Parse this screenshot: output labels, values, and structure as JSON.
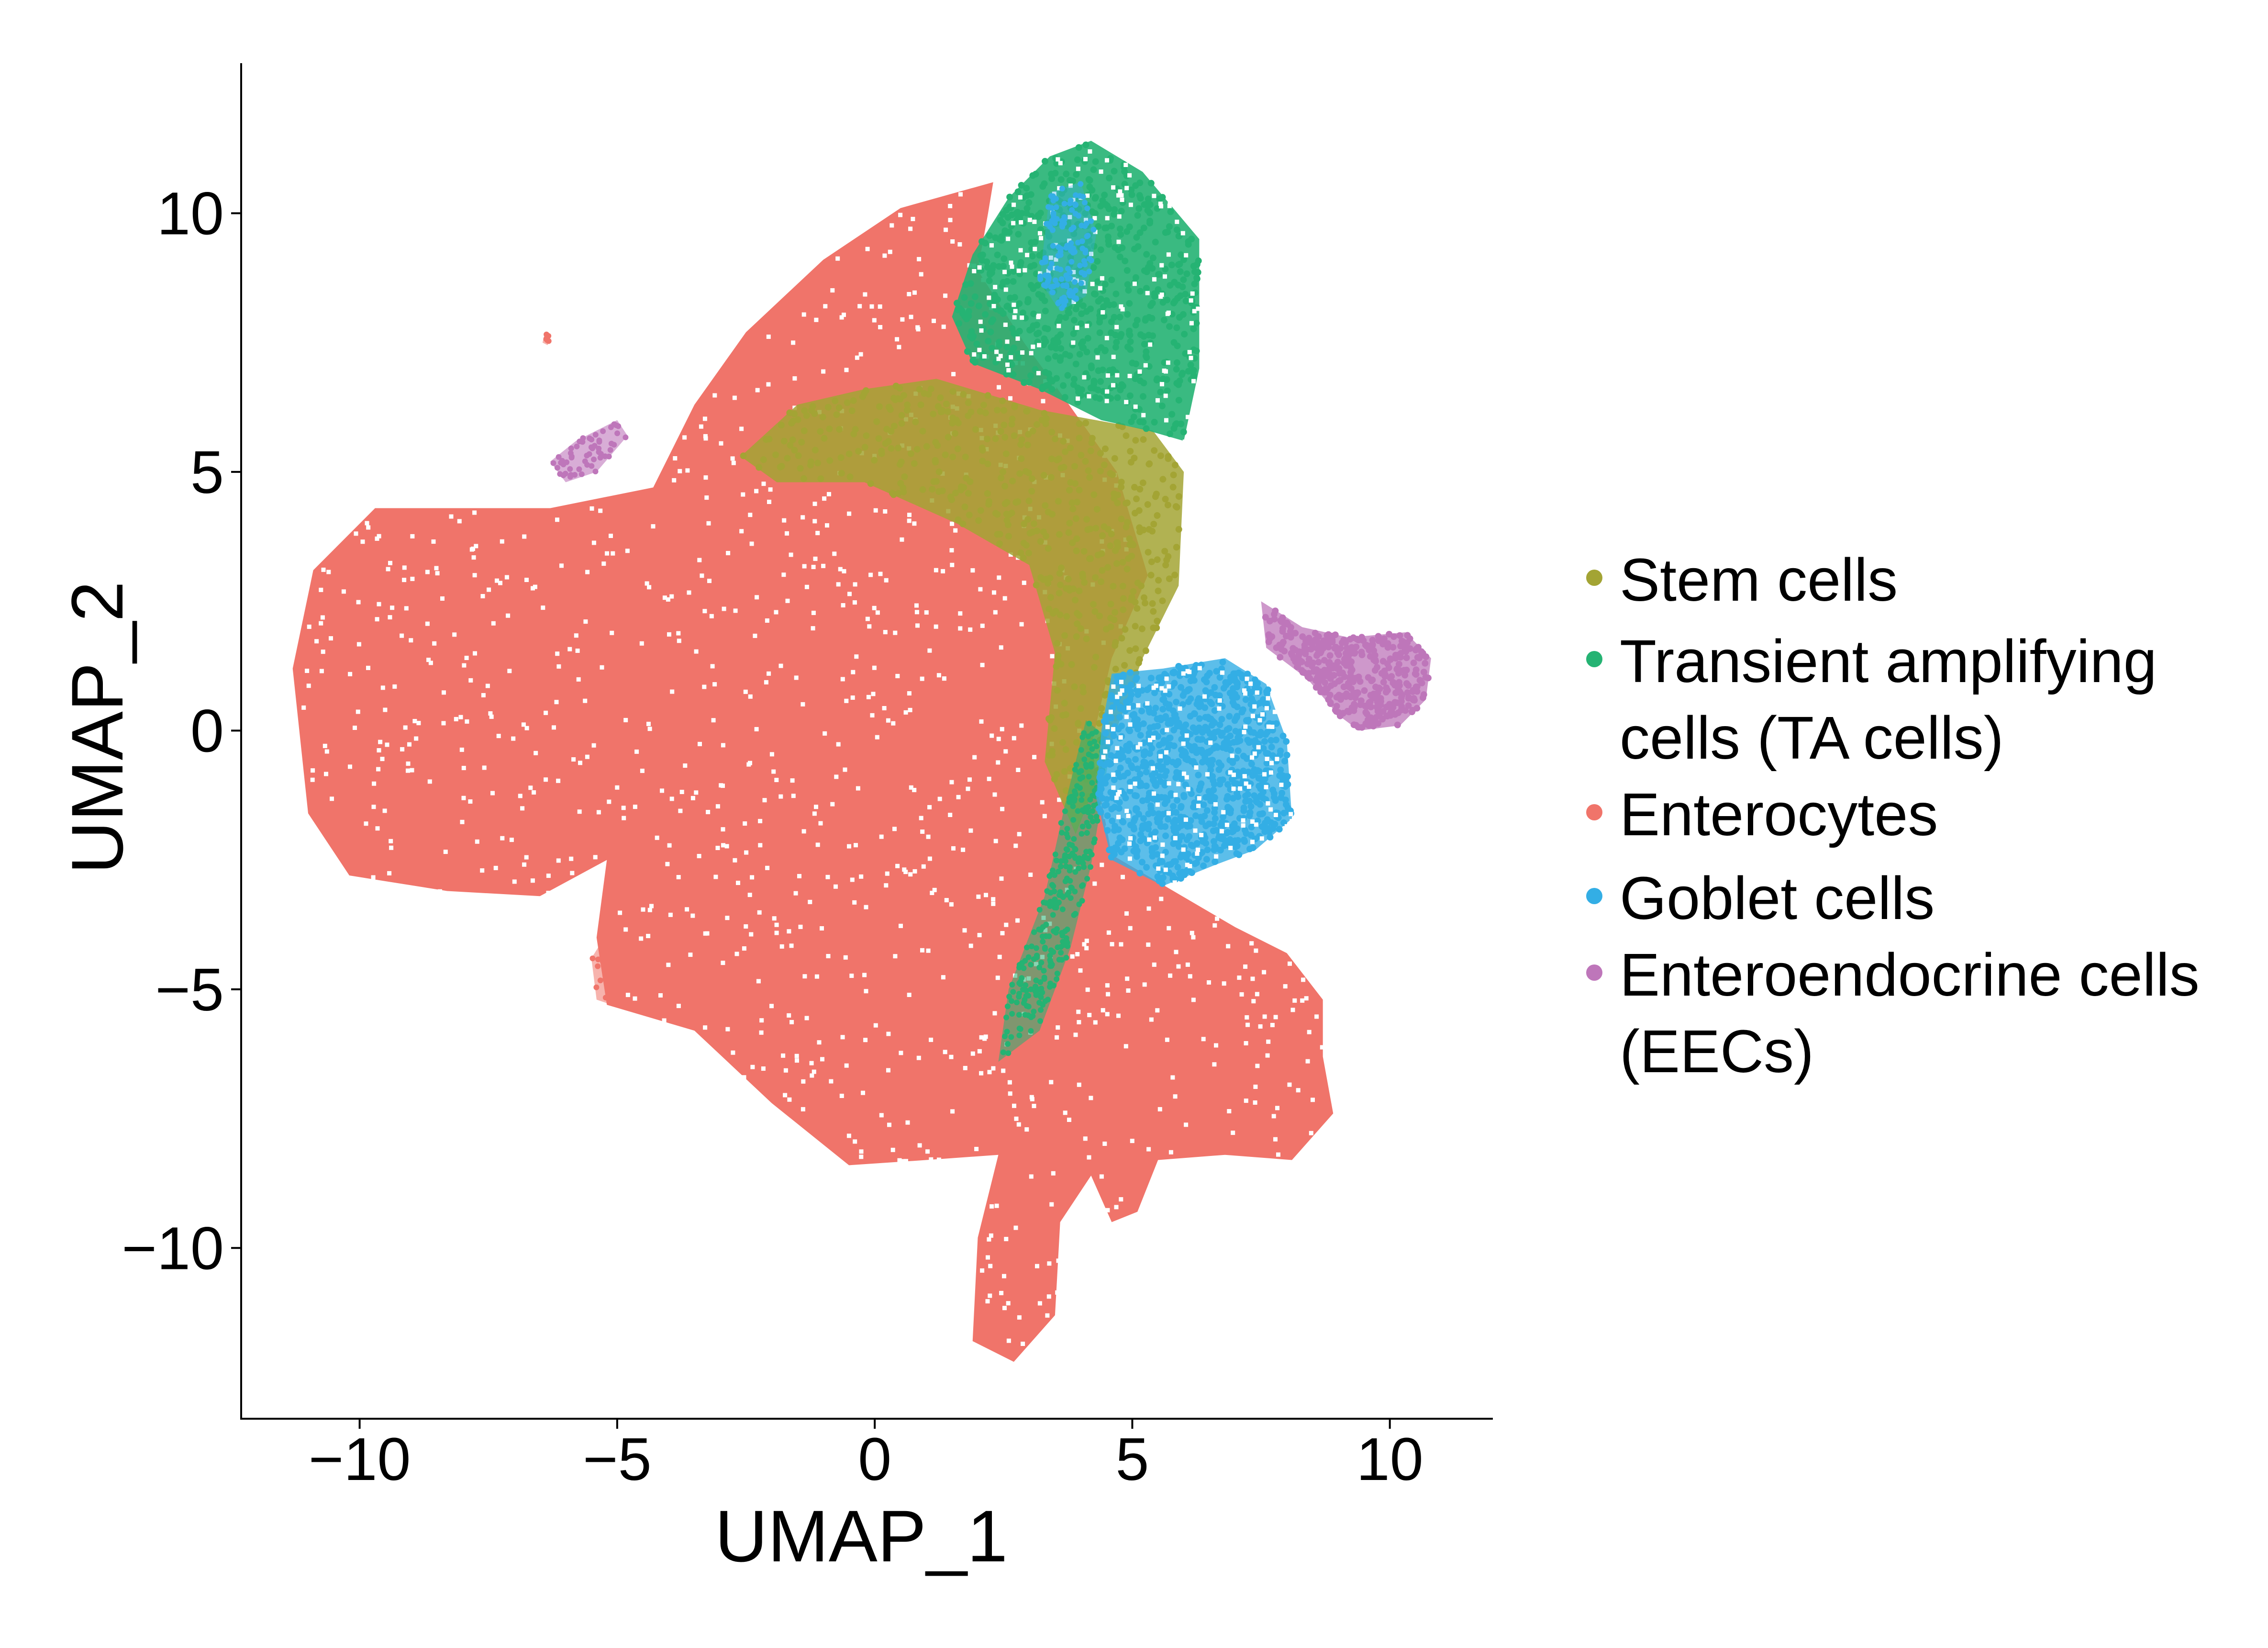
{
  "chart_data": {
    "type": "scatter",
    "title": "",
    "xlabel": "UMAP_1",
    "ylabel": "UMAP_2",
    "xlim": [
      -12.3,
      12.0
    ],
    "ylim": [
      -13.3,
      12.9
    ],
    "x_ticks": [
      {
        "value": -10,
        "label": "−10"
      },
      {
        "value": -5,
        "label": "−5"
      },
      {
        "value": 0,
        "label": "0"
      },
      {
        "value": 5,
        "label": "5"
      },
      {
        "value": 10,
        "label": "10"
      }
    ],
    "y_ticks": [
      {
        "value": -10,
        "label": "−10"
      },
      {
        "value": -5,
        "label": "−5"
      },
      {
        "value": 0,
        "label": "0"
      },
      {
        "value": 5,
        "label": "5"
      },
      {
        "value": 10,
        "label": "10"
      }
    ],
    "grid": false,
    "legend_position": "right",
    "series": [
      {
        "name": "Stem cells",
        "color": "#A3A434",
        "region": {
          "polygon": [
            [
              1.2,
              6.8
            ],
            [
              3.2,
              6.2
            ],
            [
              5.4,
              5.8
            ],
            [
              6.0,
              5.0
            ],
            [
              5.9,
              2.8
            ],
            [
              5.2,
              1.4
            ],
            [
              4.5,
              -0.5
            ],
            [
              3.9,
              -2.0
            ],
            [
              3.3,
              -0.6
            ],
            [
              3.5,
              1.5
            ],
            [
              3.0,
              3.2
            ],
            [
              1.6,
              4.0
            ],
            [
              -0.2,
              4.8
            ],
            [
              -1.9,
              4.8
            ],
            [
              -2.6,
              5.3
            ],
            [
              -1.5,
              6.3
            ],
            [
              -0.2,
              6.6
            ]
          ],
          "points": 520
        }
      },
      {
        "name": "Transient amplifying cells (TA cells)",
        "color": "#25B373",
        "region": {
          "polygon": [
            [
              2.6,
              10.3
            ],
            [
              3.4,
              11.1
            ],
            [
              4.2,
              11.4
            ],
            [
              5.2,
              10.8
            ],
            [
              6.3,
              9.5
            ],
            [
              6.3,
              7.0
            ],
            [
              6.0,
              5.6
            ],
            [
              5.3,
              5.8
            ],
            [
              4.4,
              6.0
            ],
            [
              3.2,
              6.6
            ],
            [
              1.9,
              7.1
            ],
            [
              1.5,
              8.0
            ],
            [
              1.9,
              9.2
            ]
          ],
          "points": 620
        },
        "band": {
          "polygon": [
            [
              4.1,
              0.2
            ],
            [
              4.6,
              -0.2
            ],
            [
              4.2,
              -2.6
            ],
            [
              3.8,
              -4.2
            ],
            [
              3.2,
              -5.8
            ],
            [
              2.4,
              -6.4
            ],
            [
              2.6,
              -5.0
            ],
            [
              3.3,
              -3.2
            ],
            [
              3.7,
              -1.4
            ]
          ],
          "points": 280
        }
      },
      {
        "name": "Enterocytes",
        "color": "#F0746A",
        "hull": [
          [
            2.3,
            10.6
          ],
          [
            0.5,
            10.1
          ],
          [
            -1.0,
            9.1
          ],
          [
            -2.5,
            7.7
          ],
          [
            -3.5,
            6.3
          ],
          [
            -4.3,
            4.7
          ],
          [
            -6.3,
            4.3
          ],
          [
            -9.7,
            4.3
          ],
          [
            -10.9,
            3.1
          ],
          [
            -11.3,
            1.2
          ],
          [
            -11.0,
            -1.6
          ],
          [
            -10.2,
            -2.8
          ],
          [
            -8.3,
            -3.1
          ],
          [
            -6.5,
            -3.2
          ],
          [
            -5.2,
            -2.5
          ],
          [
            -5.4,
            -4.0
          ],
          [
            -5.2,
            -5.3
          ],
          [
            -3.5,
            -5.8
          ],
          [
            -2.0,
            -7.2
          ],
          [
            -0.5,
            -8.4
          ],
          [
            1.0,
            -8.3
          ],
          [
            2.4,
            -8.2
          ],
          [
            2.0,
            -9.8
          ],
          [
            1.9,
            -11.8
          ],
          [
            2.7,
            -12.2
          ],
          [
            3.5,
            -11.3
          ],
          [
            3.6,
            -9.5
          ],
          [
            4.2,
            -8.6
          ],
          [
            4.6,
            -9.5
          ],
          [
            5.1,
            -9.3
          ],
          [
            5.5,
            -8.3
          ],
          [
            6.8,
            -8.2
          ],
          [
            8.1,
            -8.3
          ],
          [
            8.9,
            -7.4
          ],
          [
            8.7,
            -6.3
          ],
          [
            8.7,
            -5.2
          ],
          [
            8.0,
            -4.3
          ],
          [
            7.0,
            -3.8
          ],
          [
            5.8,
            -3.1
          ],
          [
            4.6,
            -2.4
          ],
          [
            4.2,
            -0.3
          ],
          [
            4.6,
            1.4
          ],
          [
            5.3,
            3.0
          ],
          [
            4.7,
            5.0
          ],
          [
            3.7,
            6.4
          ],
          [
            2.9,
            7.5
          ],
          [
            2.0,
            8.9
          ],
          [
            2.2,
            10.0
          ]
        ],
        "satellite_clusters": [
          {
            "polygon": [
              [
                -5.0,
                -3.6
              ],
              [
                -4.5,
                -3.7
              ],
              [
                -4.4,
                -4.8
              ],
              [
                -4.8,
                -5.4
              ],
              [
                -5.4,
                -5.2
              ],
              [
                -5.5,
                -4.4
              ]
            ],
            "points": 60
          },
          {
            "polygon": [
              [
                -6.4,
                7.7
              ],
              [
                -6.3,
                7.6
              ],
              [
                -6.35,
                7.45
              ],
              [
                -6.45,
                7.5
              ]
            ],
            "points": 6
          }
        ]
      },
      {
        "name": "Goblet cells",
        "color": "#33AEE5",
        "region": {
          "polygon": [
            [
              4.6,
              1.1
            ],
            [
              5.6,
              1.2
            ],
            [
              6.8,
              1.4
            ],
            [
              7.6,
              0.9
            ],
            [
              8.0,
              -0.2
            ],
            [
              8.1,
              -1.7
            ],
            [
              7.4,
              -2.3
            ],
            [
              6.6,
              -2.6
            ],
            [
              5.6,
              -3.0
            ],
            [
              4.6,
              -2.5
            ],
            [
              4.3,
              -1.3
            ],
            [
              4.4,
              0.0
            ]
          ],
          "points": 950
        },
        "inner_cluster": {
          "polygon": [
            [
              3.4,
              10.4
            ],
            [
              4.0,
              10.6
            ],
            [
              4.3,
              9.6
            ],
            [
              4.1,
              8.4
            ],
            [
              3.6,
              8.1
            ],
            [
              3.2,
              8.7
            ]
          ],
          "points": 130
        }
      },
      {
        "name": "Enteroendocrine cells (EECs)",
        "color": "#BE76BA",
        "region": {
          "polygon": [
            [
              7.5,
              2.5
            ],
            [
              8.3,
              2.0
            ],
            [
              9.2,
              1.8
            ],
            [
              10.3,
              1.9
            ],
            [
              10.8,
              1.4
            ],
            [
              10.7,
              0.6
            ],
            [
              10.2,
              0.1
            ],
            [
              9.4,
              0.0
            ],
            [
              9.0,
              0.3
            ],
            [
              8.4,
              1.0
            ],
            [
              7.6,
              1.6
            ]
          ],
          "points": 420
        },
        "small_cluster": {
          "polygon": [
            [
              -6.3,
              5.2
            ],
            [
              -5.8,
              5.6
            ],
            [
              -5.0,
              6.0
            ],
            [
              -4.8,
              5.7
            ],
            [
              -5.4,
              5.0
            ],
            [
              -6.0,
              4.8
            ]
          ],
          "points": 55
        }
      }
    ]
  },
  "legend": {
    "items": [
      {
        "lines": [
          "Stem cells"
        ],
        "color": "#A3A434"
      },
      {
        "lines": [
          "Transient amplifying",
          " cells (TA cells)"
        ],
        "color": "#25B373"
      },
      {
        "lines": [
          "Enterocytes"
        ],
        "color": "#F0746A"
      },
      {
        "lines": [
          "Goblet cells"
        ],
        "color": "#33AEE5"
      },
      {
        "lines": [
          "Enteroendocrine cells",
          "(EECs)"
        ],
        "color": "#BE76BA"
      }
    ]
  }
}
